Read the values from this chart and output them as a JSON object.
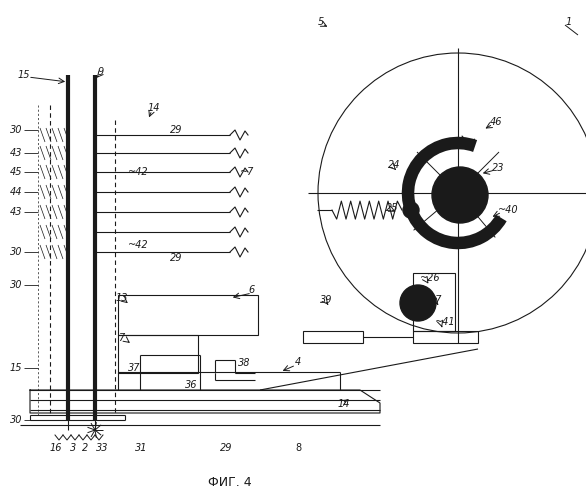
{
  "title": "ФИГ. 4",
  "bg_color": "#ffffff",
  "line_color": "#1a1a1a",
  "fig_width": 5.86,
  "fig_height": 5.0,
  "dpi": 100
}
